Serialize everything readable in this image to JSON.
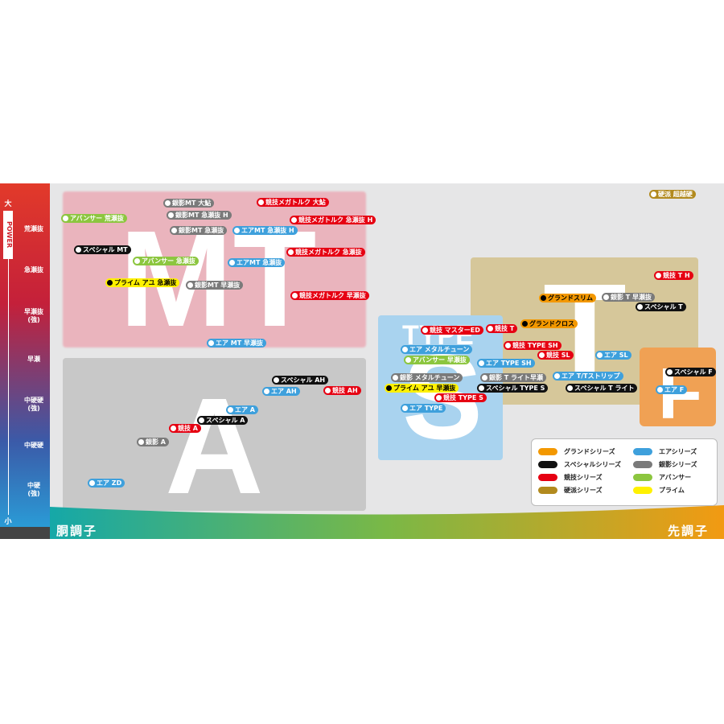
{
  "axis": {
    "top": "大",
    "title": "POWER",
    "bottom": "小",
    "levels": [
      [
        "荒瀬抜"
      ],
      [
        "急瀬抜"
      ],
      [
        "早瀬抜",
        "(強)"
      ],
      [
        "早瀬"
      ],
      [
        "中硬硬",
        "(強)"
      ],
      [
        "中硬硬"
      ],
      [
        "中硬",
        "(強)"
      ]
    ],
    "left": "胴調子",
    "right": "先調子"
  },
  "regions": [
    {
      "label": "MT"
    },
    {
      "label": "A"
    },
    {
      "label": "TYPE"
    },
    {
      "label": "S"
    },
    {
      "label": "T"
    },
    {
      "label": "F"
    }
  ],
  "series": [
    {
      "name": "グランドシリーズ",
      "color": "#f39800",
      "text_color": "#000"
    },
    {
      "name": "スペシャルシリーズ",
      "color": "#111111",
      "text_color": "#fff"
    },
    {
      "name": "競技シリーズ",
      "color": "#e60012",
      "text_color": "#fff"
    },
    {
      "name": "硬派シリーズ",
      "color": "#b28a1e",
      "text_color": "#fff"
    },
    {
      "name": "エアシリーズ",
      "color": "#3ea0dc",
      "text_color": "#fff"
    },
    {
      "name": "銀影シリーズ",
      "color": "#7a7a7a",
      "text_color": "#fff"
    },
    {
      "name": "アバンサー",
      "color": "#8cc63f",
      "text_color": "#fff"
    },
    {
      "name": "プライム",
      "color": "#fff100",
      "text_color": "#000"
    }
  ],
  "tags": [
    {
      "label": "銀影MT 大鮎",
      "series": 5
    },
    {
      "label": "競技メガトルク 大鮎",
      "series": 2
    },
    {
      "label": "アバンサー 荒瀬抜",
      "series": 6
    },
    {
      "label": "銀影MT 急瀬抜 H",
      "series": 5
    },
    {
      "label": "競技メガトルク 急瀬抜 H",
      "series": 2
    },
    {
      "label": "銀影MT 急瀬抜",
      "series": 5
    },
    {
      "label": "エアMT 急瀬抜 H",
      "series": 4
    },
    {
      "label": "スペシャル MT",
      "series": 1
    },
    {
      "label": "アバンサー 急瀬抜",
      "series": 6
    },
    {
      "label": "エアMT 急瀬抜",
      "series": 4
    },
    {
      "label": "競技メガトルク 急瀬抜",
      "series": 2
    },
    {
      "label": "プライム アユ 急瀬抜",
      "series": 7
    },
    {
      "label": "銀影MT 早瀬抜",
      "series": 5
    },
    {
      "label": "競技メガトルク 早瀬抜",
      "series": 2
    },
    {
      "label": "エア MT 早瀬抜",
      "series": 4
    },
    {
      "label": "スペシャル AH",
      "series": 1
    },
    {
      "label": "エア AH",
      "series": 4
    },
    {
      "label": "競技 AH",
      "series": 2
    },
    {
      "label": "エア A",
      "series": 4
    },
    {
      "label": "スペシャル A",
      "series": 1
    },
    {
      "label": "競技 A",
      "series": 2
    },
    {
      "label": "銀影 A",
      "series": 5
    },
    {
      "label": "エア ZD",
      "series": 4
    },
    {
      "label": "硬派 超越硬",
      "series": 3
    },
    {
      "label": "競技 T H",
      "series": 2
    },
    {
      "label": "グランドスリム",
      "series": 0
    },
    {
      "label": "銀影 T 早瀬抜",
      "series": 5
    },
    {
      "label": "スペシャル T",
      "series": 1
    },
    {
      "label": "競技 マスターED",
      "series": 2
    },
    {
      "label": "競技 T",
      "series": 2
    },
    {
      "label": "グランドクロス",
      "series": 0
    },
    {
      "label": "競技 TYPE SH",
      "series": 2
    },
    {
      "label": "競技 SL",
      "series": 2
    },
    {
      "label": "エア SL",
      "series": 4
    },
    {
      "label": "エア メタルチューン",
      "series": 4
    },
    {
      "label": "アバンサー 早瀬抜",
      "series": 6
    },
    {
      "label": "エア TYPE SH",
      "series": 4
    },
    {
      "label": "スペシャル F",
      "series": 1
    },
    {
      "label": "銀影 メタルチューン",
      "series": 5
    },
    {
      "label": "銀影 T ライト早瀬",
      "series": 5
    },
    {
      "label": "エア T/Tストリップ",
      "series": 4
    },
    {
      "label": "プライム アユ 早瀬抜",
      "series": 7
    },
    {
      "label": "スペシャル TYPE S",
      "series": 1
    },
    {
      "label": "スペシャル T ライト",
      "series": 1
    },
    {
      "label": "エア F",
      "series": 4
    },
    {
      "label": "競技 TYPE S",
      "series": 2
    },
    {
      "label": "エア TYPE",
      "series": 4
    }
  ]
}
